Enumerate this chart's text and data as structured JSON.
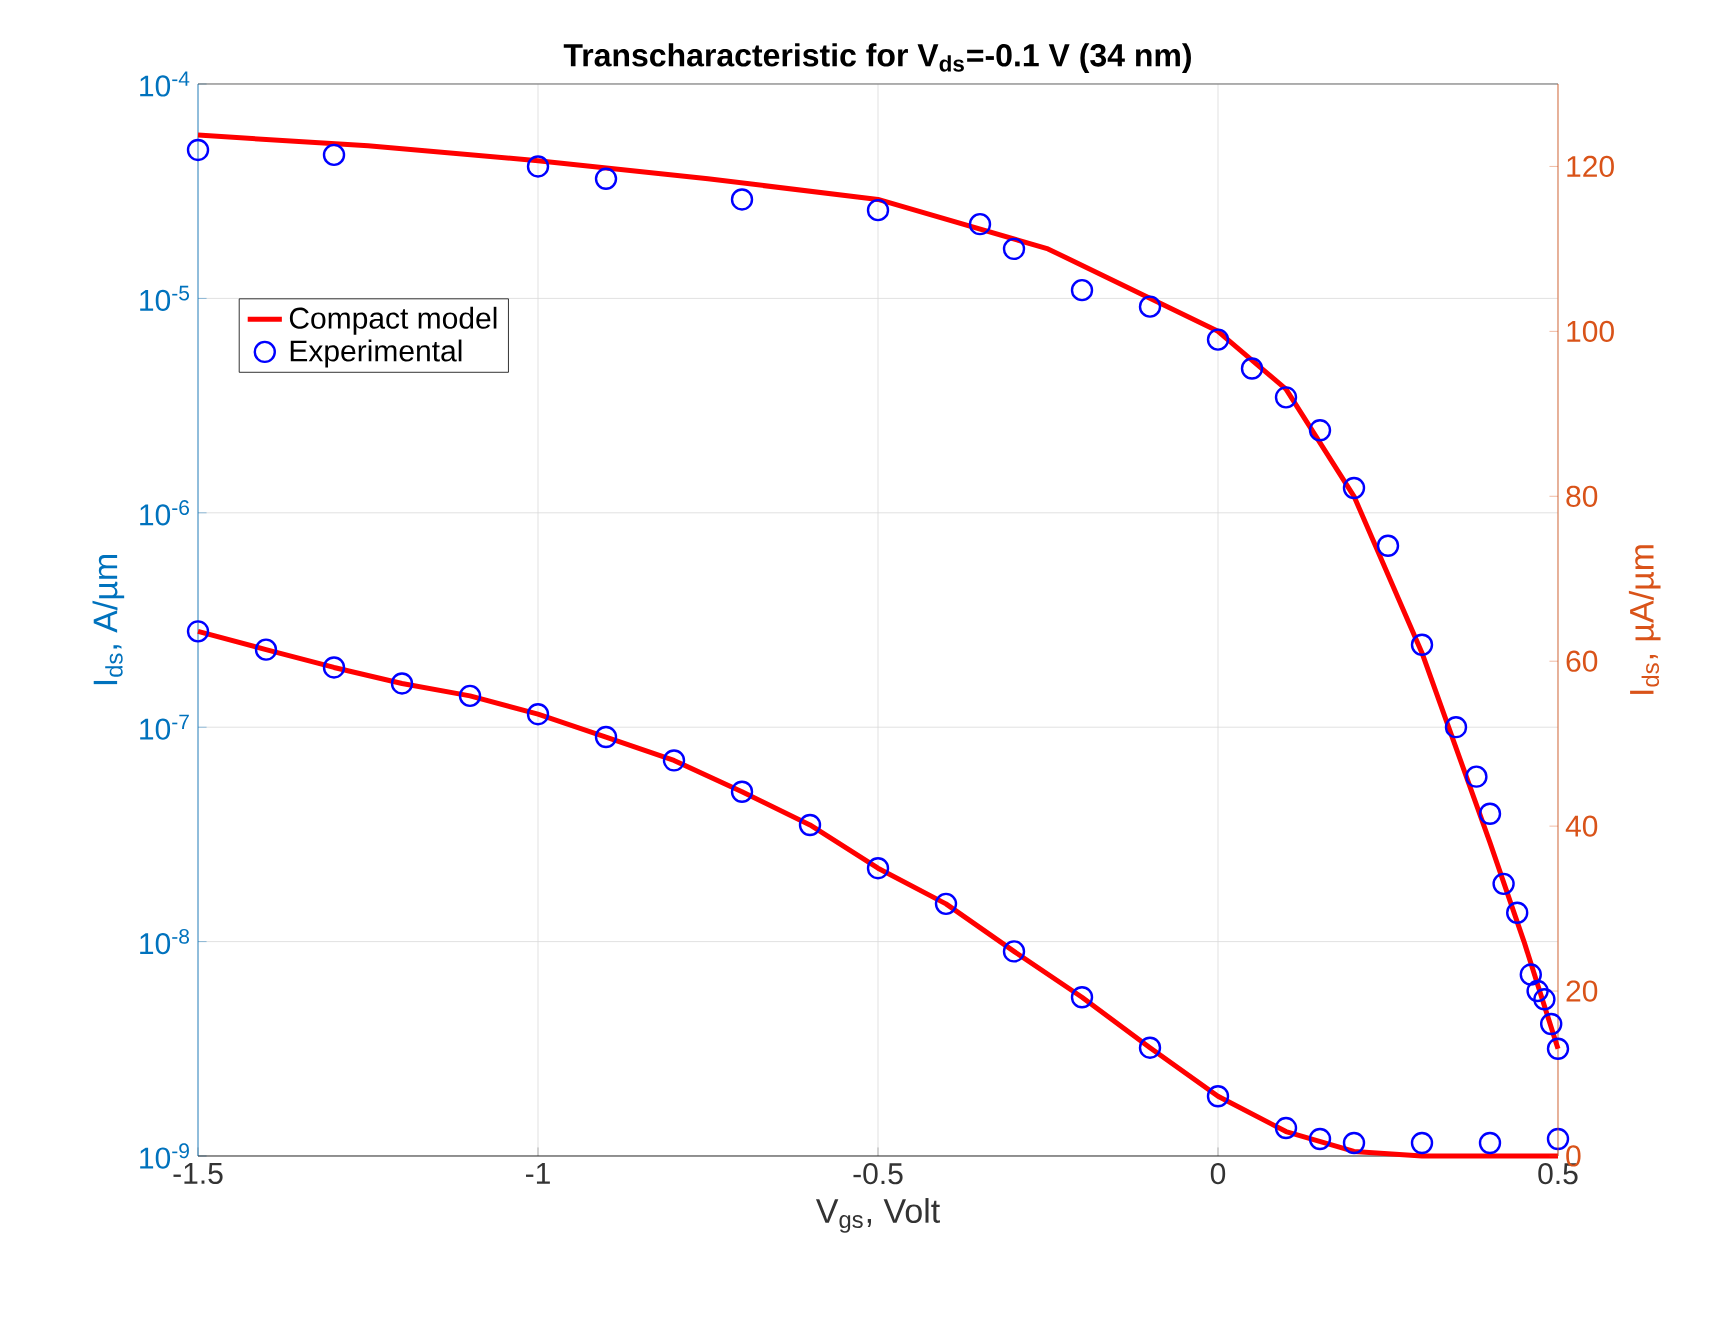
{
  "chart_data": {
    "type": "line",
    "title": "Transcharacteristic for V$_{ds}$=-0.1 V (34 nm)",
    "xlabel": "V$_{gs}$, Volt",
    "ylabel": "I$_{ds}$, A/µm",
    "y2label": "I$_{ds}$, µA/µm",
    "log": "y",
    "grid": true,
    "legend": "top left",
    "xlim": [
      -1.5,
      0.5
    ],
    "xticks": [
      -1.5,
      -1,
      -0.5,
      0,
      0.5
    ],
    "ylim": [
      1e-09,
      0.0001
    ],
    "yticks": [
      {
        "value": 1e-09,
        "label": "10$^{-9}$"
      },
      {
        "value": 1e-08,
        "label": "10$^{-8}$"
      },
      {
        "value": 1e-07,
        "label": "10$^{-7}$"
      },
      {
        "value": 1e-06,
        "label": "10$^{-6}$"
      },
      {
        "value": 1e-05,
        "label": "10$^{-5}$"
      },
      {
        "value": 0.0001,
        "label": "10$^{-4}$"
      }
    ],
    "y2lim": [
      0,
      130
    ],
    "y2ticks": [
      0,
      20,
      40,
      60,
      80,
      100,
      120
    ],
    "series": [
      {
        "name": "Compact model",
        "line_style": "solid",
        "color": "#ff0000",
        "x": [
          -1.5,
          -1.4,
          -1.3,
          -1.2,
          -1.1,
          -1.0,
          -0.9,
          -0.8,
          -0.7,
          -0.6,
          -0.5,
          -0.4,
          -0.3,
          -0.2,
          -0.1,
          0,
          0.1,
          0.2,
          0.3,
          0.4,
          0.5
        ],
        "values": [
          2.8e-07,
          2.3e-07,
          1.9e-07,
          1.6e-07,
          1.4e-07,
          1.15e-07,
          9e-08,
          7e-08,
          5e-08,
          3.5e-08,
          2.2e-08,
          1.5e-08,
          9e-09,
          5.5e-09,
          3.2e-09,
          1.9e-09,
          1.3e-09,
          1.05e-09,
          1e-09,
          1e-09,
          1e-09
        ]
      },
      {
        "name": "Experimental",
        "type": "scatter",
        "marker": "circle",
        "color": "#0000ff",
        "x": [
          -1.5,
          -1.4,
          -1.3,
          -1.2,
          -1.1,
          -1.0,
          -0.9,
          -0.8,
          -0.7,
          -0.6,
          -0.5,
          -0.4,
          -0.3,
          -0.2,
          -0.1,
          0,
          0.1,
          0.15,
          0.2,
          0.3,
          0.4,
          0.5
        ],
        "values": [
          2.8e-07,
          2.3e-07,
          1.9e-07,
          1.6e-07,
          1.4e-07,
          1.15e-07,
          9e-08,
          7e-08,
          5e-08,
          3.5e-08,
          2.2e-08,
          1.5e-08,
          9e-09,
          5.5e-09,
          3.2e-09,
          1.9e-09,
          1.35e-09,
          1.2e-09,
          1.15e-09,
          1.15e-09,
          1.15e-09,
          1.2e-09
        ]
      },
      {
        "axis": "y2",
        "line_style": "solid",
        "color": "#ff0000",
        "x": [
          -1.5,
          -1.25,
          -1.0,
          -0.75,
          -0.5,
          -0.25,
          0,
          0.1,
          0.2,
          0.3,
          0.4,
          0.45,
          0.5
        ],
        "values": [
          123.8,
          122.5,
          120.7,
          118.5,
          116,
          110,
          100,
          93,
          80,
          61,
          38,
          26,
          13
        ]
      },
      {
        "type": "scatter",
        "axis": "y2",
        "marker": "circle",
        "color": "#0000ff",
        "x": [
          -1.5,
          -1.3,
          -1.0,
          -0.9,
          -0.7,
          -0.5,
          -0.35,
          -0.3,
          -0.2,
          -0.1,
          0,
          0.05,
          0.1,
          0.15,
          0.2,
          0.25,
          0.3,
          0.35,
          0.38,
          0.4,
          0.42,
          0.44,
          0.46,
          0.47,
          0.48,
          0.49,
          0.5
        ],
        "values": [
          122,
          121.4,
          120,
          118.5,
          116,
          114.7,
          113,
          110,
          105,
          103,
          99,
          95.5,
          92,
          88,
          81,
          74,
          62,
          52,
          46,
          41.5,
          33,
          29.5,
          22,
          20,
          19,
          16,
          13
        ]
      }
    ]
  }
}
